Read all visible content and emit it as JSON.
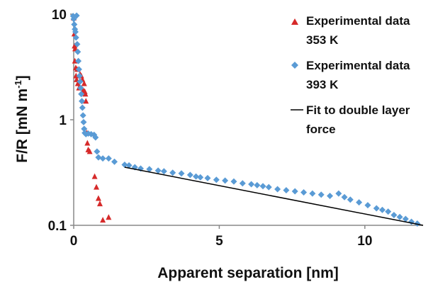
{
  "chart_data": {
    "type": "scatter",
    "xlabel": "Apparent separation [nm]",
    "ylabel_main": "F/R [mN m",
    "ylabel_sup": "-1",
    "ylabel_close": "]",
    "xlim": [
      0,
      12
    ],
    "ylim": [
      0.1,
      10
    ],
    "yscale": "log",
    "grid": false,
    "legend_position": "top-right",
    "x_ticks": [
      0,
      5,
      10
    ],
    "y_ticks": [
      10,
      1,
      0.1
    ],
    "x_tick_labels": [
      "0",
      "5",
      "10"
    ],
    "y_tick_labels": [
      "10",
      "1",
      "0.1"
    ],
    "series": [
      {
        "name": "Experimental data 353 K",
        "legend_lines": [
          "Experimental data",
          "353 K"
        ],
        "marker": "triangle",
        "color": "#d62a2a",
        "points": [
          [
            0.0,
            9.2
          ],
          [
            0.02,
            6.5
          ],
          [
            0.03,
            5.0
          ],
          [
            0.04,
            3.6
          ],
          [
            0.05,
            4.7
          ],
          [
            0.07,
            3.1
          ],
          [
            0.08,
            2.6
          ],
          [
            0.1,
            2.4
          ],
          [
            0.12,
            3.0
          ],
          [
            0.14,
            2.2
          ],
          [
            0.18,
            2.0
          ],
          [
            0.22,
            2.7
          ],
          [
            0.26,
            2.6
          ],
          [
            0.3,
            2.4
          ],
          [
            0.33,
            1.9
          ],
          [
            0.36,
            2.2
          ],
          [
            0.38,
            1.85
          ],
          [
            0.4,
            1.75
          ],
          [
            0.42,
            1.5
          ],
          [
            0.45,
            0.75
          ],
          [
            0.47,
            0.6
          ],
          [
            0.5,
            0.52
          ],
          [
            0.55,
            0.5
          ],
          [
            0.72,
            0.29
          ],
          [
            0.78,
            0.23
          ],
          [
            0.85,
            0.18
          ],
          [
            0.9,
            0.16
          ],
          [
            1.0,
            0.112
          ],
          [
            1.2,
            0.119
          ]
        ]
      },
      {
        "name": "Experimental data 393 K",
        "legend_lines": [
          "Experimental data",
          "393 K"
        ],
        "marker": "diamond",
        "color": "#5a9bd5",
        "points": [
          [
            -0.02,
            9.6
          ],
          [
            0.0,
            9.0
          ],
          [
            0.02,
            8.0
          ],
          [
            0.04,
            7.2
          ],
          [
            0.06,
            6.8
          ],
          [
            0.08,
            6.0
          ],
          [
            0.1,
            9.7
          ],
          [
            0.12,
            5.2
          ],
          [
            0.14,
            4.4
          ],
          [
            0.16,
            3.6
          ],
          [
            0.18,
            3.0
          ],
          [
            0.2,
            2.6
          ],
          [
            0.22,
            2.3
          ],
          [
            0.24,
            2.0
          ],
          [
            0.26,
            1.75
          ],
          [
            0.28,
            1.5
          ],
          [
            0.3,
            1.3
          ],
          [
            0.32,
            1.1
          ],
          [
            0.34,
            0.95
          ],
          [
            0.36,
            0.82
          ],
          [
            0.38,
            0.75
          ],
          [
            0.42,
            0.73
          ],
          [
            0.5,
            0.74
          ],
          [
            0.6,
            0.73
          ],
          [
            0.7,
            0.72
          ],
          [
            0.75,
            0.68
          ],
          [
            0.8,
            0.5
          ],
          [
            0.85,
            0.44
          ],
          [
            1.0,
            0.43
          ],
          [
            1.2,
            0.43
          ],
          [
            1.4,
            0.4
          ],
          [
            1.75,
            0.375
          ],
          [
            1.9,
            0.37
          ],
          [
            2.1,
            0.355
          ],
          [
            2.3,
            0.345
          ],
          [
            2.6,
            0.34
          ],
          [
            2.9,
            0.33
          ],
          [
            3.1,
            0.325
          ],
          [
            3.4,
            0.315
          ],
          [
            3.7,
            0.31
          ],
          [
            4.0,
            0.3
          ],
          [
            4.2,
            0.29
          ],
          [
            4.35,
            0.285
          ],
          [
            4.6,
            0.28
          ],
          [
            4.9,
            0.27
          ],
          [
            5.2,
            0.265
          ],
          [
            5.5,
            0.26
          ],
          [
            5.8,
            0.25
          ],
          [
            6.1,
            0.245
          ],
          [
            6.3,
            0.24
          ],
          [
            6.5,
            0.235
          ],
          [
            6.7,
            0.23
          ],
          [
            7.0,
            0.22
          ],
          [
            7.3,
            0.215
          ],
          [
            7.6,
            0.21
          ],
          [
            7.9,
            0.205
          ],
          [
            8.2,
            0.2
          ],
          [
            8.5,
            0.195
          ],
          [
            8.8,
            0.19
          ],
          [
            9.1,
            0.2
          ],
          [
            9.3,
            0.185
          ],
          [
            9.5,
            0.175
          ],
          [
            9.8,
            0.165
          ],
          [
            10.1,
            0.155
          ],
          [
            10.4,
            0.145
          ],
          [
            10.6,
            0.14
          ],
          [
            10.8,
            0.135
          ],
          [
            11.0,
            0.125
          ],
          [
            11.2,
            0.12
          ],
          [
            11.4,
            0.115
          ],
          [
            11.6,
            0.108
          ],
          [
            11.8,
            0.104
          ]
        ]
      },
      {
        "name": "Fit to double layer force",
        "legend_lines": [
          "Fit to double layer",
          "force"
        ],
        "marker": "line",
        "color": "#000000",
        "points": [
          [
            1.75,
            0.355
          ],
          [
            12.0,
            0.1
          ]
        ]
      }
    ]
  }
}
